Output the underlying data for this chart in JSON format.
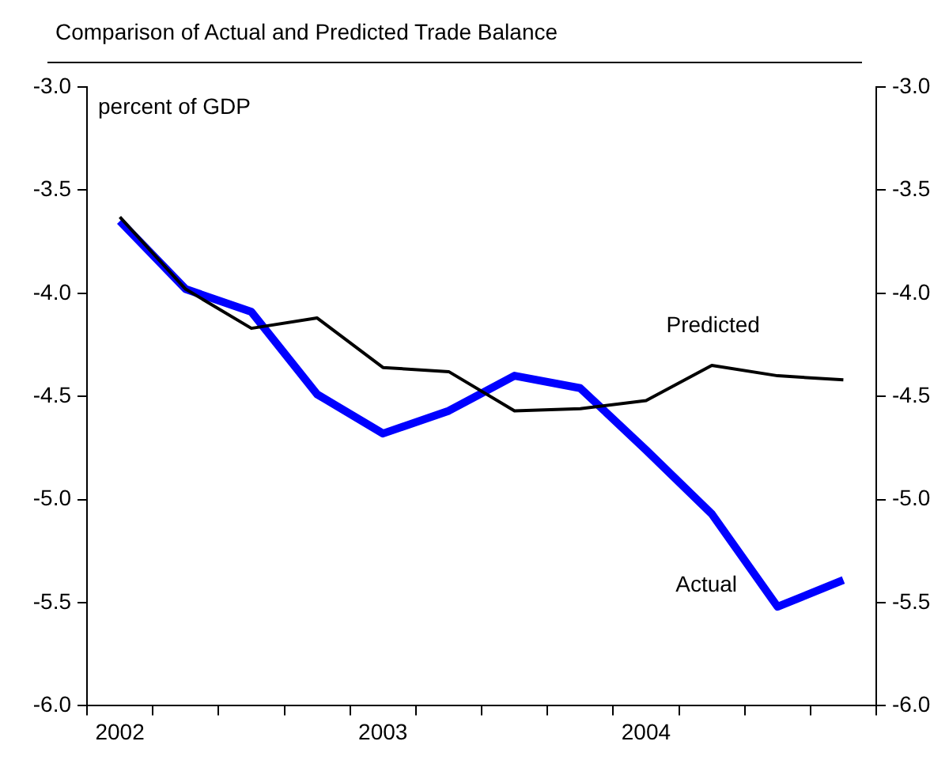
{
  "chart_data": {
    "type": "line",
    "title": "Comparison of Actual and Predicted Trade Balance",
    "ylabel": "percent of GDP",
    "categories": [
      "2002",
      null,
      null,
      null,
      "2003",
      null,
      null,
      null,
      "2004",
      null,
      null,
      null
    ],
    "series": [
      {
        "name": "Actual",
        "color": "#0000ff",
        "values": [
          -3.65,
          -3.98,
          -4.09,
          -4.49,
          -4.68,
          -4.57,
          -4.4,
          -4.46,
          -4.76,
          -5.07,
          -5.52,
          -5.39
        ]
      },
      {
        "name": "Predicted",
        "color": "#000000",
        "values": [
          -3.63,
          -3.98,
          -4.17,
          -4.12,
          -4.36,
          -4.38,
          -4.57,
          -4.56,
          -4.52,
          -4.35,
          -4.4,
          -4.42
        ]
      }
    ],
    "ylim": [
      -6.0,
      -3.0
    ],
    "yticks": [
      {
        "value": -6,
        "label": "-6.0"
      },
      {
        "value": -5.5,
        "label": "-5.5"
      },
      {
        "value": -5,
        "label": "-5.0"
      },
      {
        "value": -4.5,
        "label": "-4.5"
      },
      {
        "value": -4,
        "label": "-4.0"
      },
      {
        "value": -3.5,
        "label": "-3.5"
      },
      {
        "value": -3,
        "label": "-3.0"
      }
    ],
    "y2lim": [
      -6.0,
      -3.0
    ],
    "y2ticks": [
      {
        "value": -6,
        "label": "-6.0"
      },
      {
        "value": -5.5,
        "label": "-5.5"
      },
      {
        "value": -5,
        "label": "-5.0"
      },
      {
        "value": -4.5,
        "label": "-4.5"
      },
      {
        "value": -4,
        "label": "-4.0"
      },
      {
        "value": -3.5,
        "label": "-3.5"
      },
      {
        "value": -3,
        "label": "-3.0"
      }
    ],
    "grid": false,
    "legend": false,
    "marker": "none",
    "line_style": "solid"
  }
}
